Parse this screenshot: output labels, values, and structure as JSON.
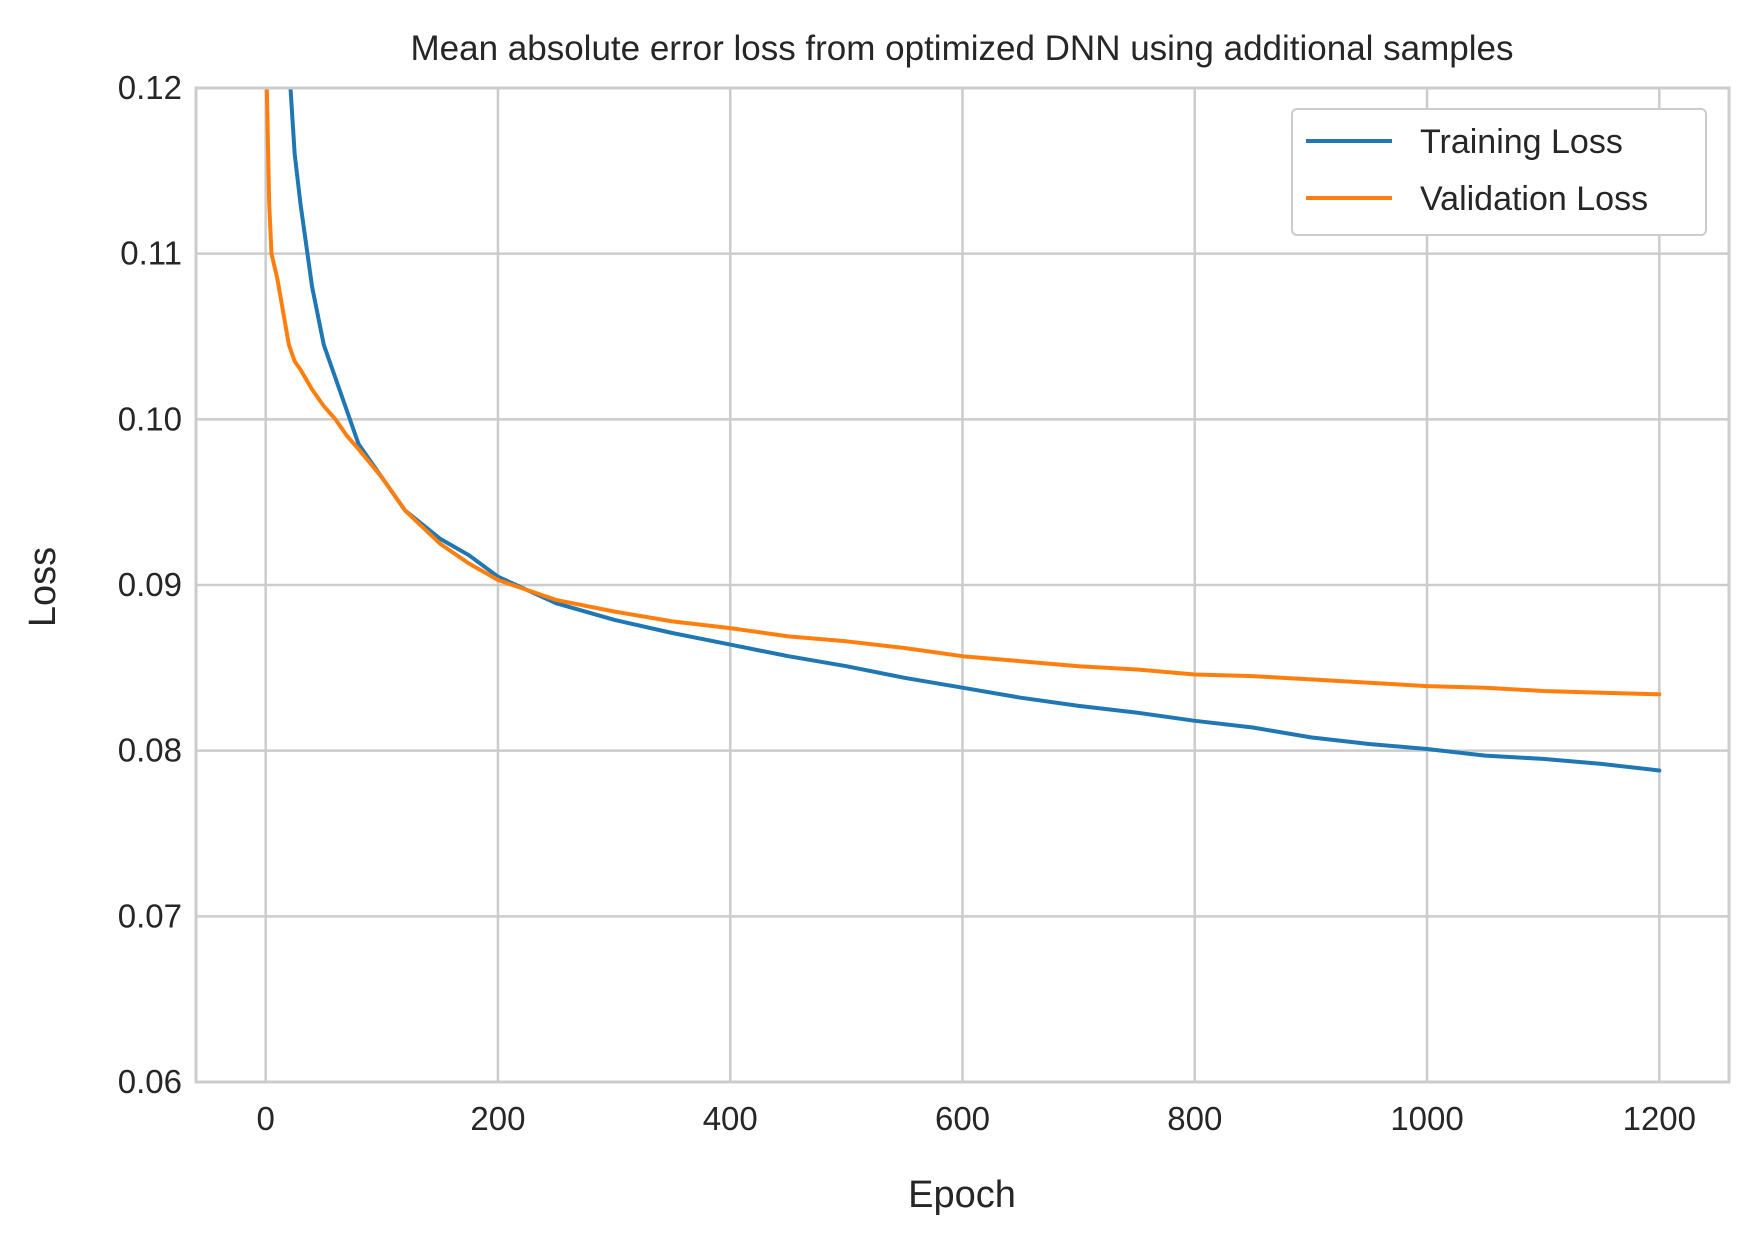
{
  "chart_data": {
    "type": "line",
    "title": "Mean absolute error loss from optimized DNN using additional samples",
    "xlabel": "Epoch",
    "ylabel": "Loss",
    "xlim": [
      -60,
      1260
    ],
    "ylim": [
      0.06,
      0.12
    ],
    "xticks": [
      0,
      200,
      400,
      600,
      800,
      1000,
      1200
    ],
    "xtick_labels": [
      "0",
      "200",
      "400",
      "600",
      "800",
      "1000",
      "1200"
    ],
    "yticks": [
      0.06,
      0.07,
      0.08,
      0.09,
      0.1,
      0.11,
      0.12
    ],
    "ytick_labels": [
      "0.06",
      "0.07",
      "0.08",
      "0.09",
      "0.10",
      "0.11",
      "0.12"
    ],
    "grid": true,
    "legend_position": "top-right",
    "colors": {
      "training": "#1f77b4",
      "validation": "#ff7f0e",
      "grid": "#cccccc",
      "text": "#262626"
    },
    "series": [
      {
        "name": "Training Loss",
        "color": "#1f77b4",
        "x": [
          20,
          25,
          30,
          40,
          50,
          60,
          70,
          80,
          100,
          120,
          150,
          175,
          200,
          250,
          300,
          350,
          400,
          450,
          500,
          550,
          600,
          650,
          700,
          750,
          800,
          850,
          900,
          950,
          1000,
          1050,
          1100,
          1150,
          1200
        ],
        "values": [
          0.1215,
          0.116,
          0.113,
          0.108,
          0.1045,
          0.1025,
          0.1005,
          0.0985,
          0.0965,
          0.0945,
          0.0928,
          0.0918,
          0.0905,
          0.0889,
          0.0879,
          0.0871,
          0.0864,
          0.0857,
          0.0851,
          0.0844,
          0.0838,
          0.0832,
          0.0827,
          0.0823,
          0.0818,
          0.0814,
          0.0808,
          0.0804,
          0.0801,
          0.0797,
          0.0795,
          0.0792,
          0.0788
        ]
      },
      {
        "name": "Validation Loss",
        "color": "#ff7f0e",
        "x": [
          1,
          3,
          5,
          10,
          15,
          20,
          25,
          30,
          40,
          50,
          60,
          70,
          80,
          100,
          120,
          150,
          175,
          200,
          250,
          300,
          350,
          400,
          450,
          500,
          550,
          600,
          650,
          700,
          750,
          800,
          850,
          900,
          950,
          1000,
          1050,
          1100,
          1150,
          1200
        ],
        "values": [
          0.12,
          0.113,
          0.11,
          0.1085,
          0.1065,
          0.1045,
          0.1035,
          0.103,
          0.1018,
          0.1008,
          0.1,
          0.099,
          0.0982,
          0.0965,
          0.0945,
          0.0925,
          0.0913,
          0.0903,
          0.0891,
          0.0884,
          0.0878,
          0.0874,
          0.0869,
          0.0866,
          0.0862,
          0.0857,
          0.0854,
          0.0851,
          0.0849,
          0.0846,
          0.0845,
          0.0843,
          0.0841,
          0.0839,
          0.0838,
          0.0836,
          0.0835,
          0.0834
        ]
      }
    ]
  }
}
